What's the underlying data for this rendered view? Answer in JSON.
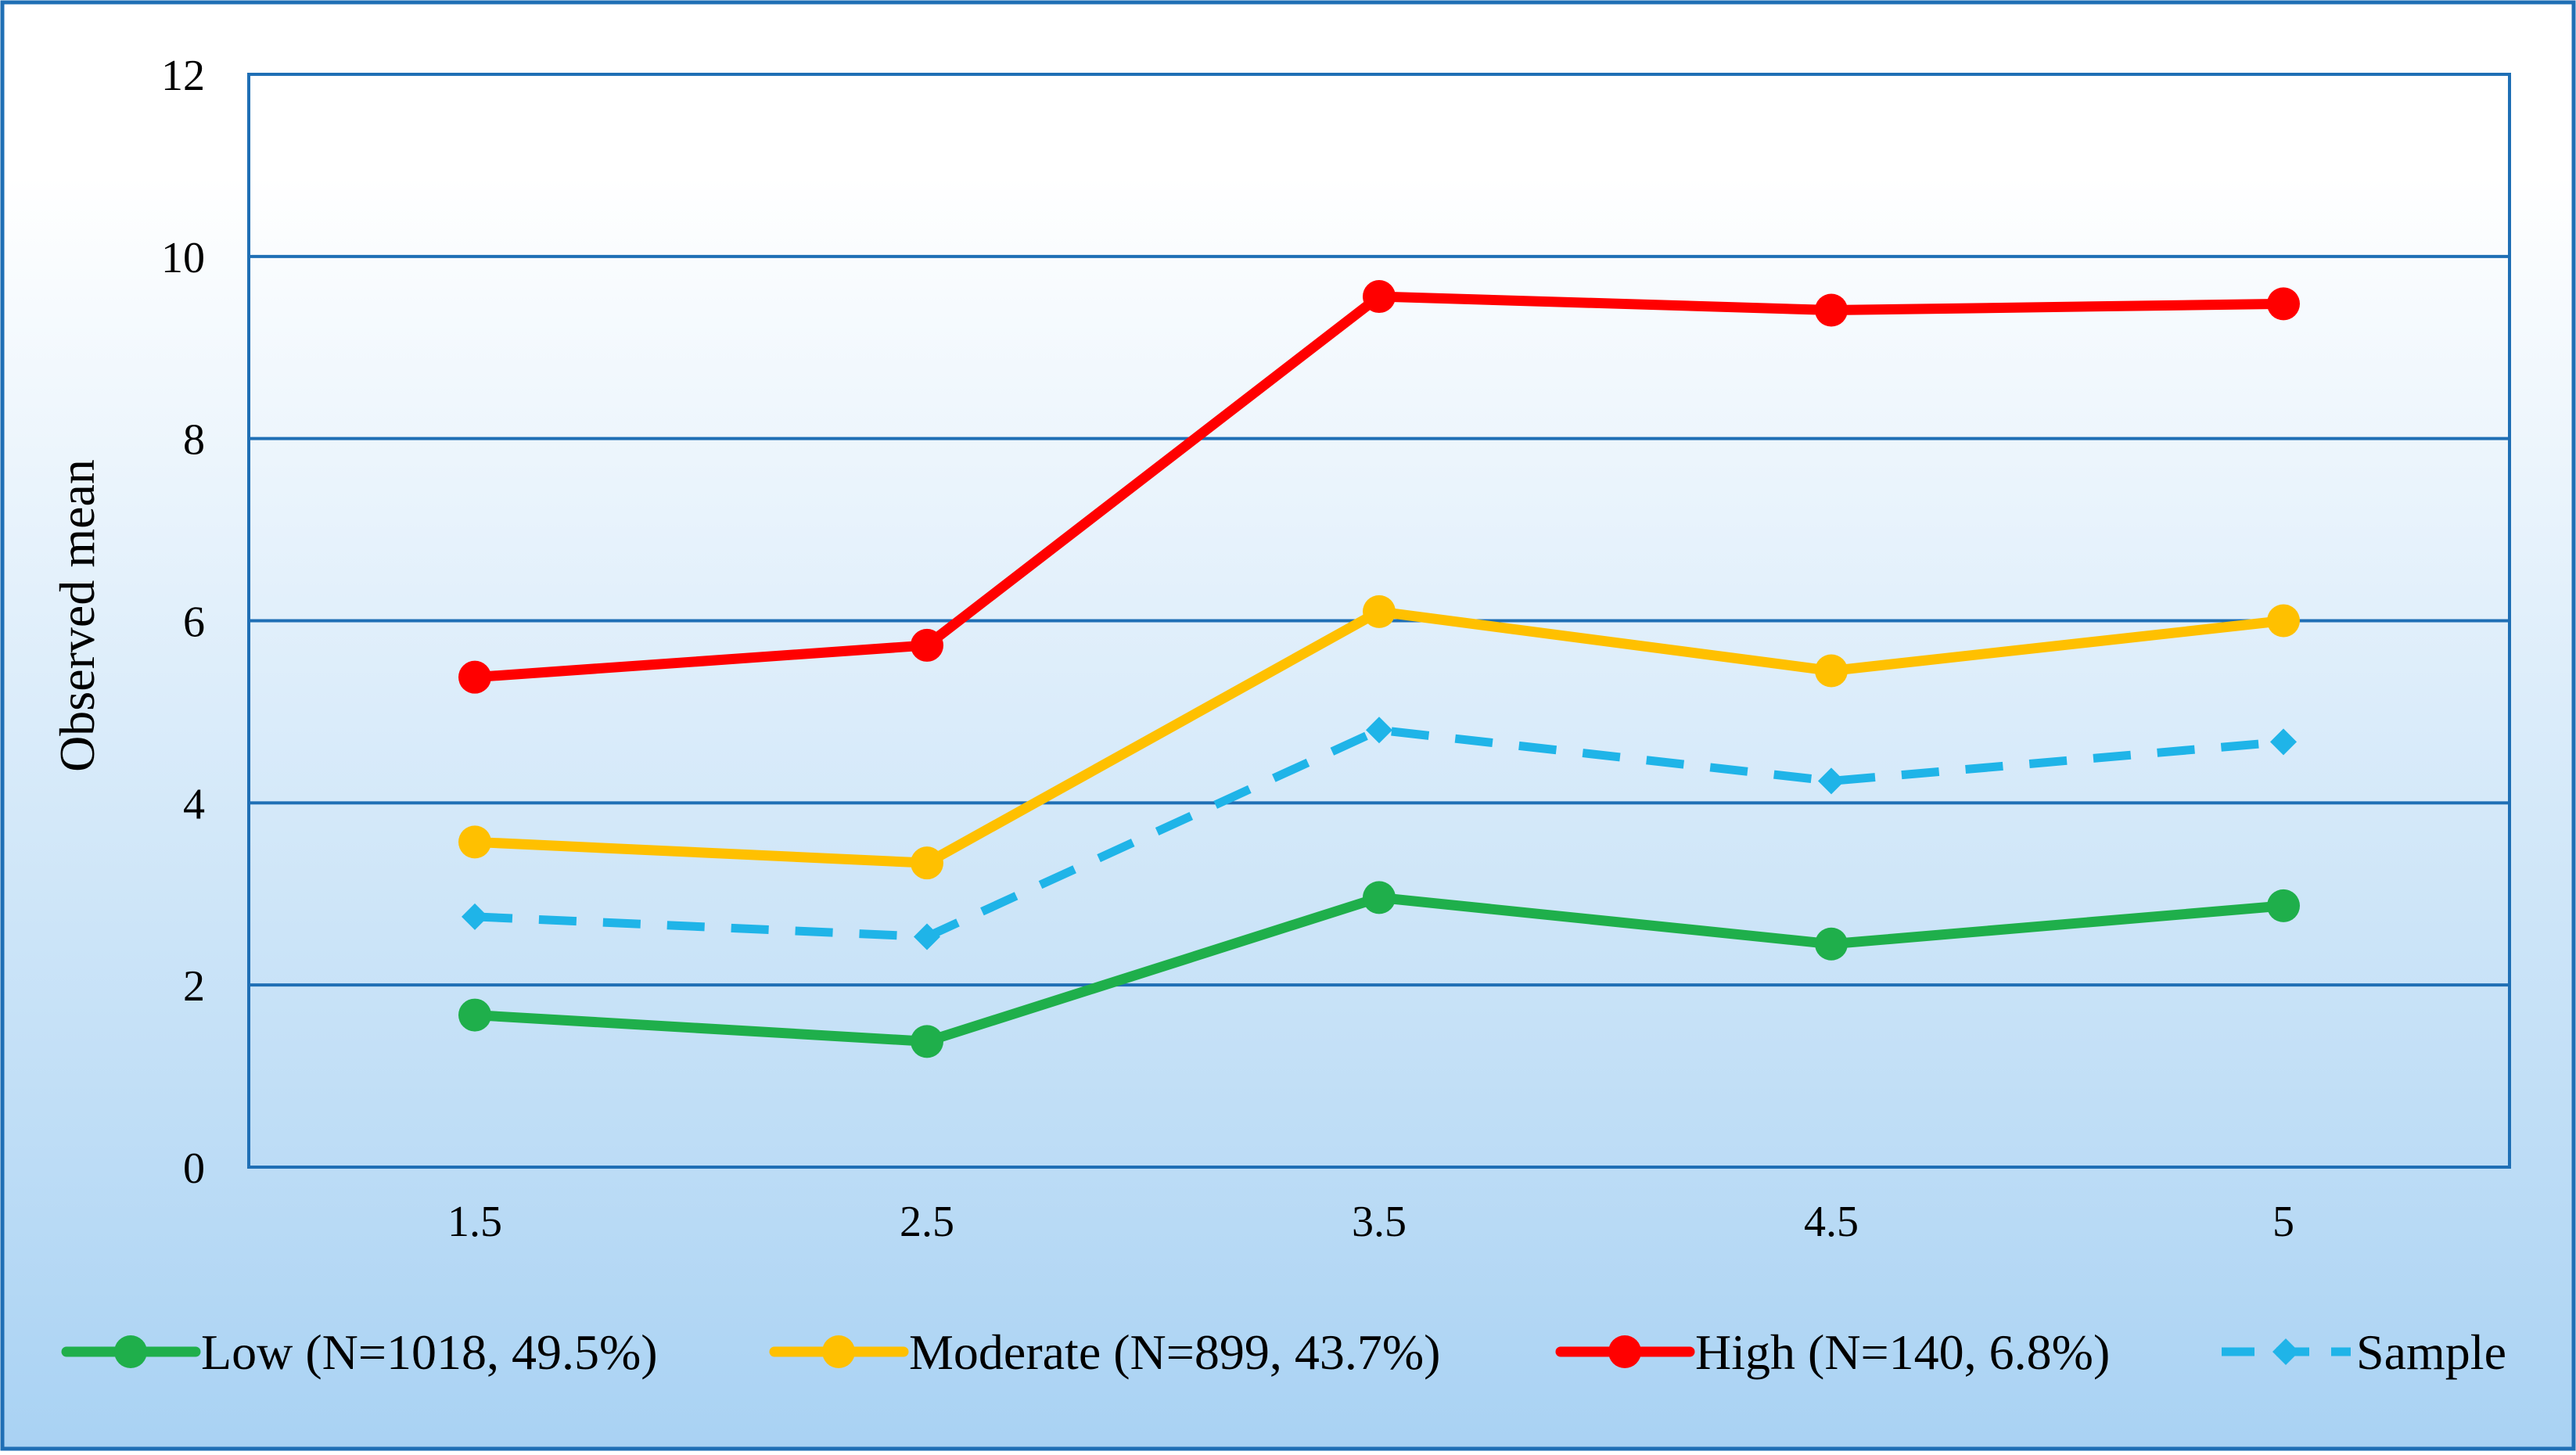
{
  "chart_data": {
    "type": "line",
    "title": "",
    "xlabel": "",
    "ylabel": "Observed mean",
    "categories": [
      "1.5",
      "2.5",
      "3.5",
      "4.5",
      "5"
    ],
    "ylim": [
      0,
      12
    ],
    "yticks": [
      "0",
      "2",
      "4",
      "6",
      "8",
      "10",
      "12"
    ],
    "grid": true,
    "legend_position": "bottom",
    "series": [
      {
        "name": "Low (N=1018, 49.5%)",
        "color": "#1FAF4B",
        "marker": "circle",
        "dash": false,
        "values": [
          1.67,
          1.38,
          2.96,
          2.45,
          2.87
        ]
      },
      {
        "name": "Moderate (N=899, 43.7%)",
        "color": "#FFC000",
        "marker": "circle",
        "dash": false,
        "values": [
          3.57,
          3.34,
          6.1,
          5.45,
          6.0
        ]
      },
      {
        "name": "High (N=140, 6.8%)",
        "color": "#FF0000",
        "marker": "circle",
        "dash": false,
        "values": [
          5.38,
          5.73,
          9.56,
          9.41,
          9.48
        ]
      },
      {
        "name": "Sample",
        "color": "#1FB4E8",
        "marker": "diamond",
        "dash": true,
        "values": [
          2.75,
          2.53,
          4.8,
          4.24,
          4.67
        ]
      }
    ]
  },
  "colors": {
    "frame_border": "#1F6FB5",
    "gridline": "#1F6FB5",
    "gradient_top": "#FFFFFF",
    "gradient_bottom": "#A9D2F3"
  }
}
